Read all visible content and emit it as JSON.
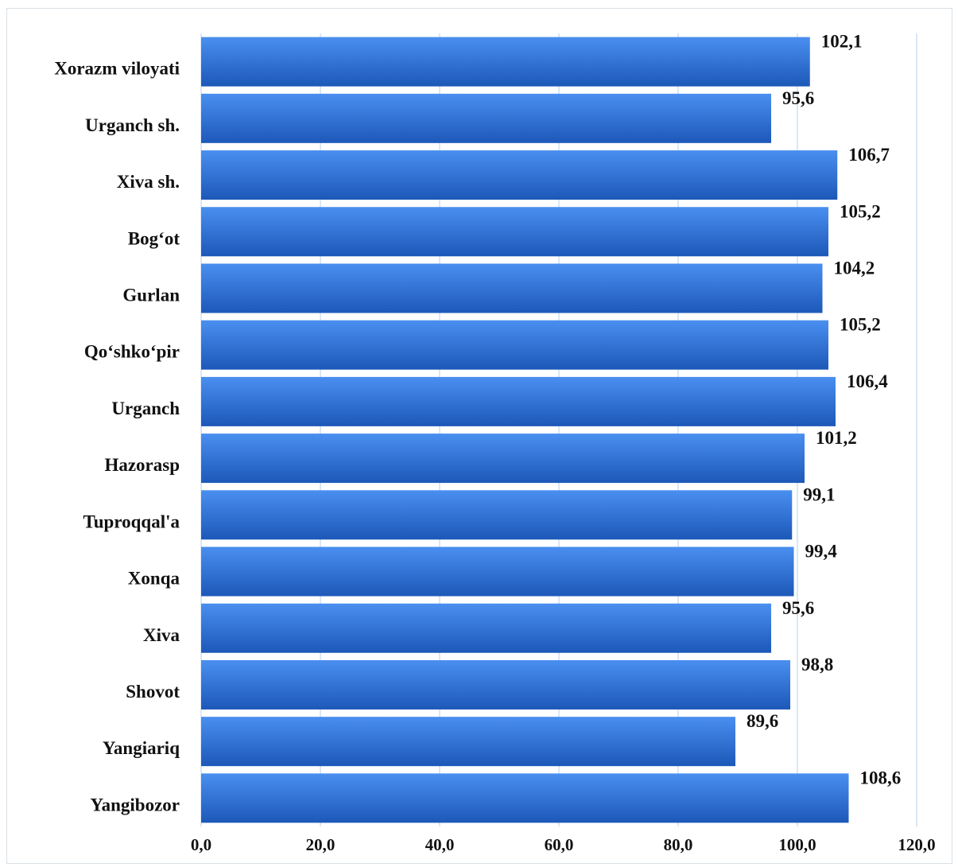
{
  "chart_data": {
    "type": "bar",
    "orientation": "horizontal",
    "categories": [
      "Xorazm viloyati",
      "Urganch sh.",
      "Xiva sh.",
      "Bog‘ot",
      "Gurlan",
      "Qo‘shko‘pir",
      "Urganch",
      "Hazorasp",
      "Tuproqqal'a",
      "Xonqa",
      "Xiva",
      "Shovot",
      "Yangiariq",
      "Yangibozor"
    ],
    "values": [
      102.1,
      95.6,
      106.7,
      105.2,
      104.2,
      105.2,
      106.4,
      101.2,
      99.1,
      99.4,
      95.6,
      98.8,
      89.6,
      108.6
    ],
    "value_labels": [
      "102,1",
      "95,6",
      "106,7",
      "105,2",
      "104,2",
      "105,2",
      "106,4",
      "101,2",
      "99,1",
      "99,4",
      "95,6",
      "98,8",
      "89,6",
      "108,6"
    ],
    "xlim": [
      0,
      120
    ],
    "x_ticks": [
      0,
      20,
      40,
      60,
      80,
      100,
      120
    ],
    "x_tick_labels": [
      "0,0",
      "20,0",
      "40,0",
      "60,0",
      "80,0",
      "100,0",
      "120,0"
    ],
    "grid": true,
    "legend": false,
    "title": "",
    "xlabel": "",
    "ylabel": "",
    "colors": {
      "bar_top": "#4a8ff0",
      "bar_bottom": "#1c58b8",
      "grid": "#cfe0f0",
      "frame": "#d9dfe6",
      "text": "#111111"
    }
  }
}
